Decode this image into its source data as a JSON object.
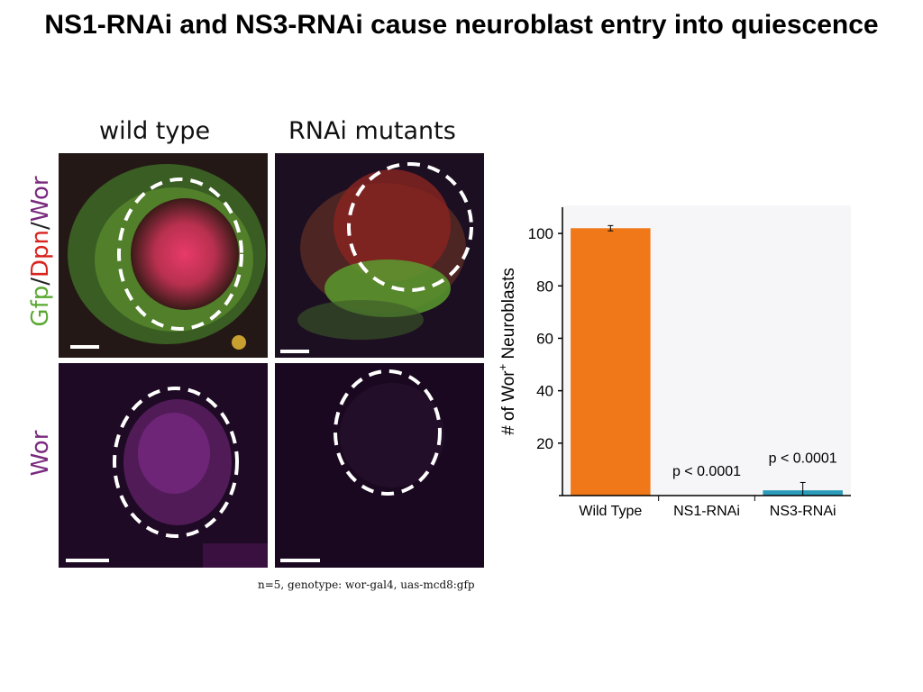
{
  "title": "NS1-RNAi and NS3-RNAi cause neuroblast entry into quiescence",
  "figure": {
    "col_labels": [
      "wild type",
      "RNAi mutants"
    ],
    "row_labels": {
      "top": [
        {
          "text": "Gfp",
          "color": "#5aa832"
        },
        {
          "text": "/",
          "color": "#222222"
        },
        {
          "text": "Dpn",
          "color": "#d8231e"
        },
        {
          "text": "/",
          "color": "#222222"
        },
        {
          "text": "Wor",
          "color": "#7a2a7e"
        }
      ],
      "bottom": {
        "text": "Wor",
        "color": "#7a2a7e"
      }
    },
    "caption": "n=5, genotype: wor-gal4, uas-mcd8:gfp"
  },
  "chart_data": {
    "type": "bar",
    "categories": [
      "Wild Type",
      "NS1-RNAi",
      "NS3-RNAi"
    ],
    "values": [
      102,
      0,
      2
    ],
    "errors": [
      1,
      0,
      3
    ],
    "bar_colors": [
      "#f07818",
      "#f07818",
      "#2a9bb8"
    ],
    "annotations": [
      "",
      "p < 0.0001",
      "p < 0.0001"
    ],
    "ylabel_parts": {
      "prefix": "# of Wor",
      "sup": "+",
      "suffix": " Neuroblasts"
    },
    "ylim": [
      0,
      110
    ],
    "yticks": [
      20,
      40,
      60,
      80,
      100
    ],
    "grid": false
  }
}
